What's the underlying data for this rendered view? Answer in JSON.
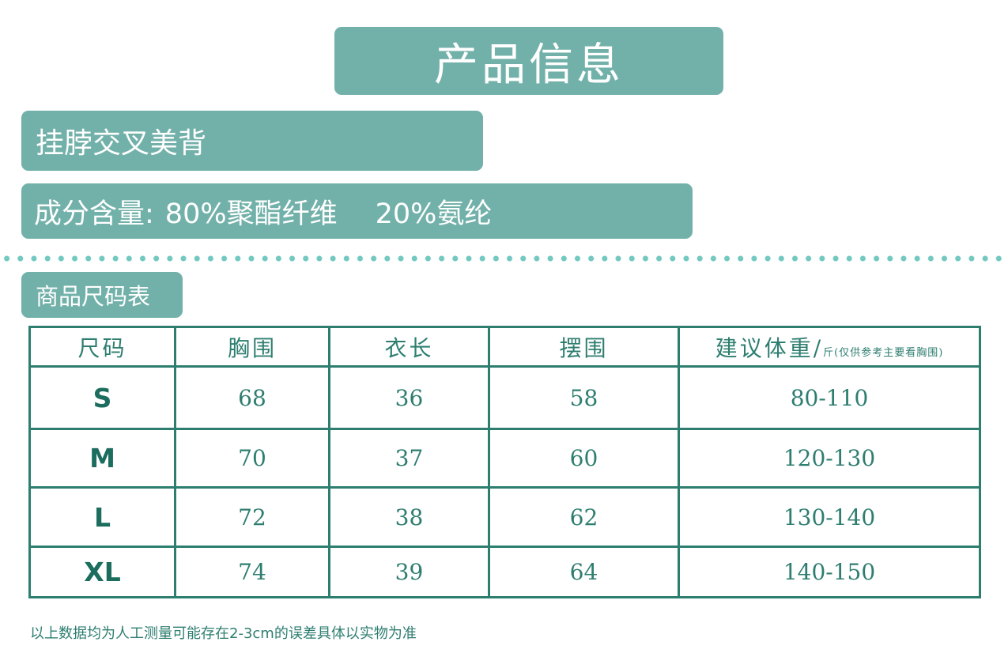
{
  "title": "产品信息",
  "product_name": "挂脖交叉美背",
  "material": {
    "label": "成分含量:",
    "part1": "80%聚酯纤维",
    "part2": "20%氨纶"
  },
  "size_chart": {
    "title": "商品尺码表",
    "headers": {
      "size": "尺码",
      "chest": "胸围",
      "length": "衣长",
      "hem": "摆围",
      "weight": "建议体重/",
      "weight_note": "斤(仅供参考主要看胸围)"
    },
    "rows": [
      {
        "size": "S",
        "chest": "68",
        "length": "36",
        "hem": "58",
        "weight": "80-110"
      },
      {
        "size": "M",
        "chest": "70",
        "length": "37",
        "hem": "60",
        "weight": "120-130"
      },
      {
        "size": "L",
        "chest": "72",
        "length": "38",
        "hem": "62",
        "weight": "130-140"
      },
      {
        "size": "XL",
        "chest": "74",
        "length": "39",
        "hem": "64",
        "weight": "140-150"
      }
    ]
  },
  "footnote": "以上数据均为人工测量可能存在2-3cm的误差具体以实物为准",
  "colors": {
    "banner": "#72b1a9",
    "table_border": "#2e7e70",
    "dots": "#73c9c1"
  }
}
